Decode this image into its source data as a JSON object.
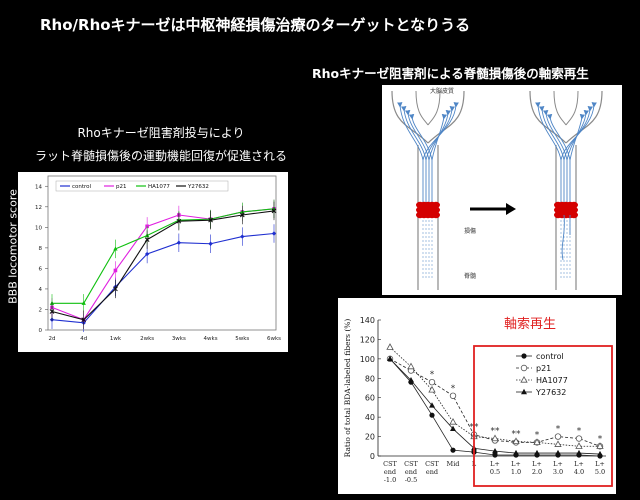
{
  "slide": {
    "title": "Rho/Rhoキナーゼは中枢神経損傷治療のターゲットとなりうる",
    "right_title": "Rhoキナーゼ阻害剤による脊髄損傷後の軸索再生",
    "left_caption_line1": "Rhoキナーゼ阻害剤投与により",
    "left_caption_line2": "ラット脊髄損傷後の運動機能回復が促進される"
  },
  "diagram": {
    "top_label": "大脳皮質",
    "injury_label": "損傷",
    "cord_label": "脊髄",
    "colors": {
      "axon": "#4f86c6",
      "lesion": "#d40000",
      "outline": "#8a8a8a"
    }
  },
  "chart_data": [
    {
      "type": "line",
      "ylabel": "BBB locomotor score",
      "categories": [
        "2d",
        "4d",
        "1wk",
        "2wks",
        "3wks",
        "4wks",
        "5wks",
        "6wks"
      ],
      "ylim": [
        0,
        15
      ],
      "yticks": [
        "0",
        "2",
        "4",
        "6",
        "8",
        "10",
        "12",
        "14"
      ],
      "legend_position": "top",
      "series": [
        {
          "name": "control",
          "color": "#1f2fd0",
          "values": [
            1.0,
            0.7,
            4.2,
            7.4,
            8.5,
            8.4,
            9.1,
            9.4
          ]
        },
        {
          "name": "p21",
          "color": "#e020e0",
          "values": [
            2.2,
            1.0,
            5.8,
            10.1,
            11.2,
            10.8,
            11.5,
            11.8
          ]
        },
        {
          "name": "HA1077",
          "color": "#10c010",
          "values": [
            2.6,
            2.6,
            7.9,
            9.2,
            10.7,
            10.8,
            11.5,
            11.8
          ]
        },
        {
          "name": "Y27632",
          "color": "#101010",
          "values": [
            1.8,
            1.0,
            4.0,
            8.8,
            10.6,
            10.7,
            11.2,
            11.6
          ]
        }
      ]
    },
    {
      "type": "line",
      "ylabel": "Ratio of total BDA-labeled fibers (%)",
      "annotation": "軸索再生",
      "annotation_color": "#e02020",
      "categories": [
        "CST end -1.0",
        "CST end -0.5",
        "CST end",
        "Mid",
        "L",
        "L+ 0.5",
        "L+ 1.0",
        "L+ 2.0",
        "L+ 3.0",
        "L+ 4.0",
        "L+ 5.0"
      ],
      "ylim": [
        0,
        140
      ],
      "yticks": [
        "0",
        "20",
        "40",
        "60",
        "80",
        "100",
        "120",
        "140"
      ],
      "legend_position": "right",
      "series": [
        {
          "name": "control",
          "marker": "filled-circle",
          "values": [
            100,
            76,
            42,
            6,
            4,
            1,
            1,
            1,
            1,
            1,
            0
          ]
        },
        {
          "name": "p21",
          "marker": "open-circle",
          "values": [
            100,
            88,
            76,
            62,
            22,
            16,
            14,
            14,
            20,
            18,
            10
          ]
        },
        {
          "name": "HA1077",
          "marker": "open-triangle",
          "values": [
            112,
            92,
            68,
            35,
            20,
            18,
            15,
            14,
            12,
            10,
            10
          ]
        },
        {
          "name": "Y27632",
          "marker": "filled-triangle",
          "values": [
            100,
            78,
            52,
            28,
            8,
            5,
            3,
            3,
            3,
            3,
            2
          ]
        }
      ],
      "significance": [
        "",
        "",
        "*",
        "*",
        "**",
        "**",
        "**",
        "*",
        "*",
        "*",
        "*"
      ]
    }
  ]
}
